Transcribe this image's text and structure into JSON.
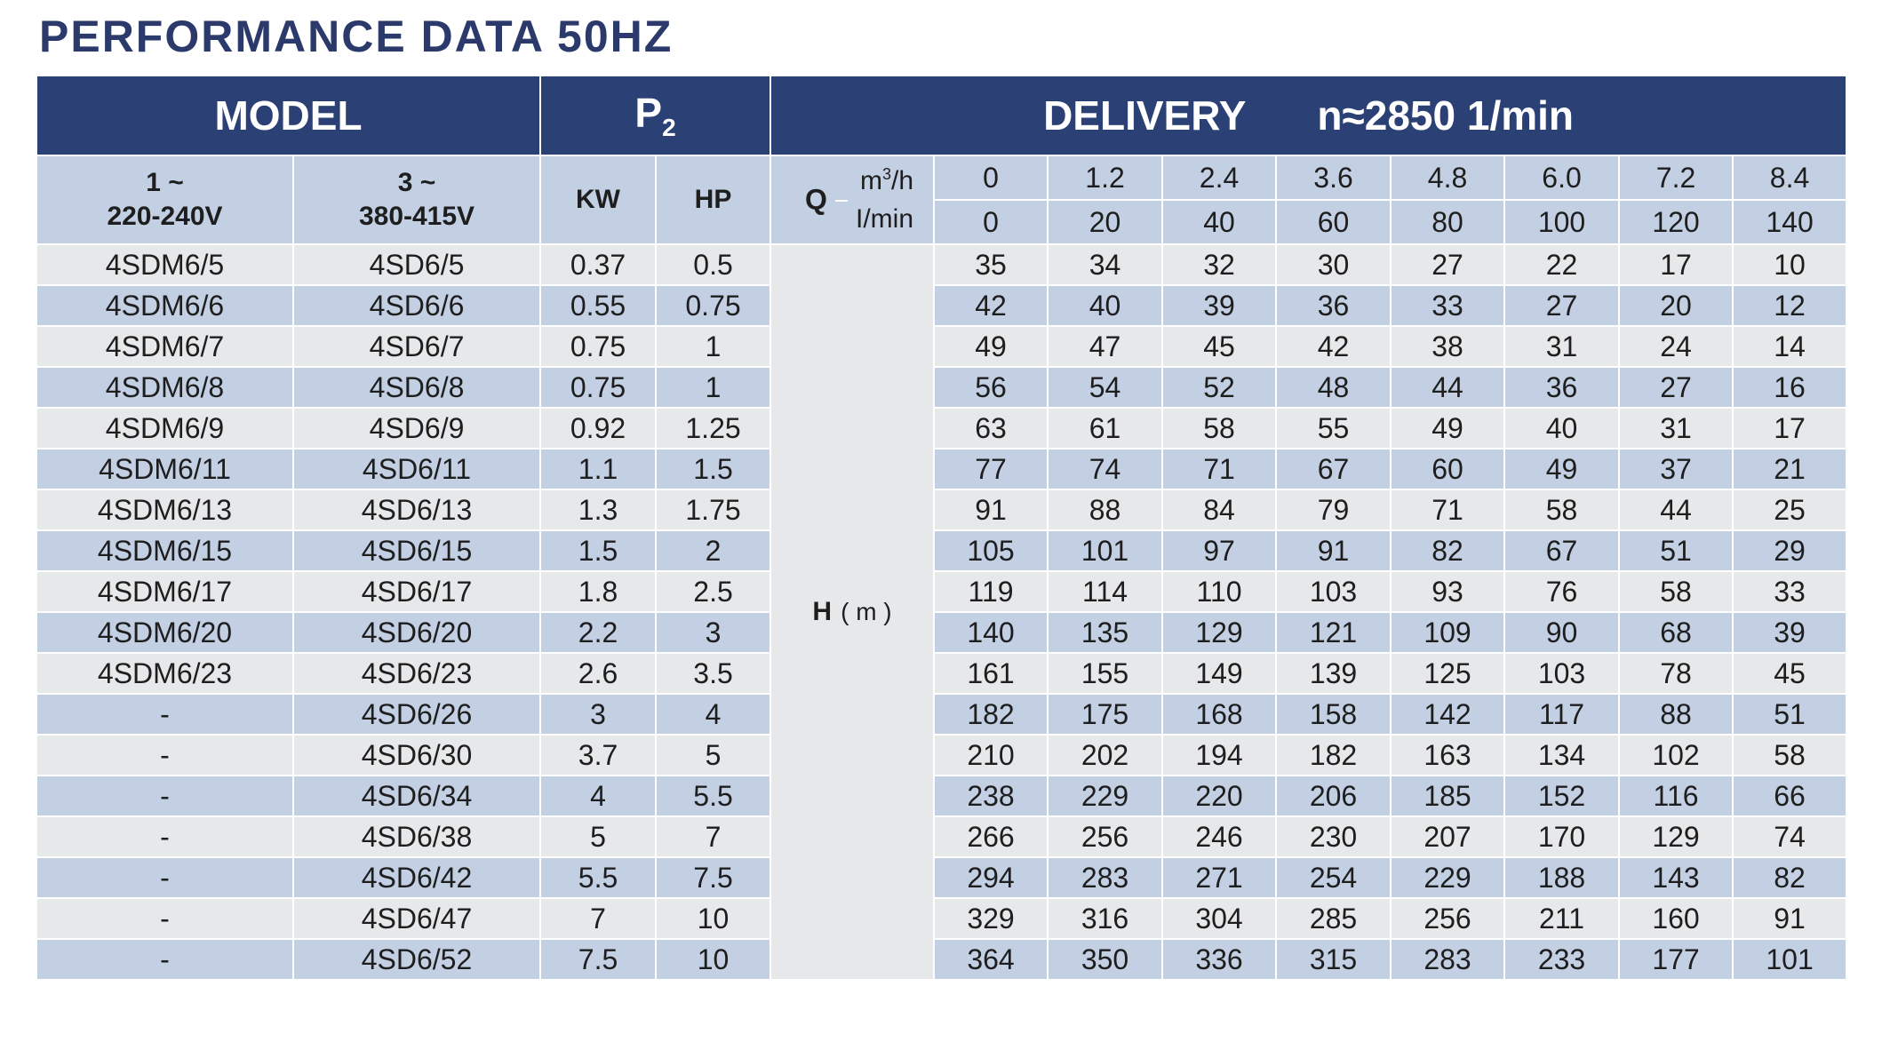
{
  "title": "PERFORMANCE DATA 50HZ",
  "header": {
    "model": "MODEL",
    "p2_letter": "P",
    "p2_subscript": "2",
    "delivery": "DELIVERY",
    "speed": "n≈2850 1/min"
  },
  "subheader": {
    "single_phase_line1": "1 ~",
    "single_phase_line2": "220-240V",
    "three_phase_line1": "3 ~",
    "three_phase_line2": "380-415V",
    "kw": "KW",
    "hp": "HP",
    "q_label": "Q",
    "q_unit_m3h_base": "m",
    "q_unit_m3h_exp": "3",
    "q_unit_m3h_rest": "/h",
    "q_unit_lmin": "I/min",
    "q_m3h": [
      "0",
      "1.2",
      "2.4",
      "3.6",
      "4.8",
      "6.0",
      "7.2",
      "8.4"
    ],
    "q_lmin": [
      "0",
      "20",
      "40",
      "60",
      "80",
      "100",
      "120",
      "140"
    ]
  },
  "h_label": "H",
  "h_unit": "( m )",
  "rows": [
    {
      "model1": "4SDM6/5",
      "model3": "4SD6/5",
      "kw": "0.37",
      "hp": "0.5",
      "h": [
        "35",
        "34",
        "32",
        "30",
        "27",
        "22",
        "17",
        "10"
      ]
    },
    {
      "model1": "4SDM6/6",
      "model3": "4SD6/6",
      "kw": "0.55",
      "hp": "0.75",
      "h": [
        "42",
        "40",
        "39",
        "36",
        "33",
        "27",
        "20",
        "12"
      ]
    },
    {
      "model1": "4SDM6/7",
      "model3": "4SD6/7",
      "kw": "0.75",
      "hp": "1",
      "h": [
        "49",
        "47",
        "45",
        "42",
        "38",
        "31",
        "24",
        "14"
      ]
    },
    {
      "model1": "4SDM6/8",
      "model3": "4SD6/8",
      "kw": "0.75",
      "hp": "1",
      "h": [
        "56",
        "54",
        "52",
        "48",
        "44",
        "36",
        "27",
        "16"
      ]
    },
    {
      "model1": "4SDM6/9",
      "model3": "4SD6/9",
      "kw": "0.92",
      "hp": "1.25",
      "h": [
        "63",
        "61",
        "58",
        "55",
        "49",
        "40",
        "31",
        "17"
      ]
    },
    {
      "model1": "4SDM6/11",
      "model3": "4SD6/11",
      "kw": "1.1",
      "hp": "1.5",
      "h": [
        "77",
        "74",
        "71",
        "67",
        "60",
        "49",
        "37",
        "21"
      ]
    },
    {
      "model1": "4SDM6/13",
      "model3": "4SD6/13",
      "kw": "1.3",
      "hp": "1.75",
      "h": [
        "91",
        "88",
        "84",
        "79",
        "71",
        "58",
        "44",
        "25"
      ]
    },
    {
      "model1": "4SDM6/15",
      "model3": "4SD6/15",
      "kw": "1.5",
      "hp": "2",
      "h": [
        "105",
        "101",
        "97",
        "91",
        "82",
        "67",
        "51",
        "29"
      ]
    },
    {
      "model1": "4SDM6/17",
      "model3": "4SD6/17",
      "kw": "1.8",
      "hp": "2.5",
      "h": [
        "119",
        "114",
        "110",
        "103",
        "93",
        "76",
        "58",
        "33"
      ]
    },
    {
      "model1": "4SDM6/20",
      "model3": "4SD6/20",
      "kw": "2.2",
      "hp": "3",
      "h": [
        "140",
        "135",
        "129",
        "121",
        "109",
        "90",
        "68",
        "39"
      ]
    },
    {
      "model1": "4SDM6/23",
      "model3": "4SD6/23",
      "kw": "2.6",
      "hp": "3.5",
      "h": [
        "161",
        "155",
        "149",
        "139",
        "125",
        "103",
        "78",
        "45"
      ]
    },
    {
      "model1": "-",
      "model3": "4SD6/26",
      "kw": "3",
      "hp": "4",
      "h": [
        "182",
        "175",
        "168",
        "158",
        "142",
        "117",
        "88",
        "51"
      ]
    },
    {
      "model1": "-",
      "model3": "4SD6/30",
      "kw": "3.7",
      "hp": "5",
      "h": [
        "210",
        "202",
        "194",
        "182",
        "163",
        "134",
        "102",
        "58"
      ]
    },
    {
      "model1": "-",
      "model3": "4SD6/34",
      "kw": "4",
      "hp": "5.5",
      "h": [
        "238",
        "229",
        "220",
        "206",
        "185",
        "152",
        "116",
        "66"
      ]
    },
    {
      "model1": "-",
      "model3": "4SD6/38",
      "kw": "5",
      "hp": "7",
      "h": [
        "266",
        "256",
        "246",
        "230",
        "207",
        "170",
        "129",
        "74"
      ]
    },
    {
      "model1": "-",
      "model3": "4SD6/42",
      "kw": "5.5",
      "hp": "7.5",
      "h": [
        "294",
        "283",
        "271",
        "254",
        "229",
        "188",
        "143",
        "82"
      ]
    },
    {
      "model1": "-",
      "model3": "4SD6/47",
      "kw": "7",
      "hp": "10",
      "h": [
        "329",
        "316",
        "304",
        "285",
        "256",
        "211",
        "160",
        "91"
      ]
    },
    {
      "model1": "-",
      "model3": "4SD6/52",
      "kw": "7.5",
      "hp": "10",
      "h": [
        "364",
        "350",
        "336",
        "315",
        "283",
        "233",
        "177",
        "101"
      ]
    }
  ]
}
